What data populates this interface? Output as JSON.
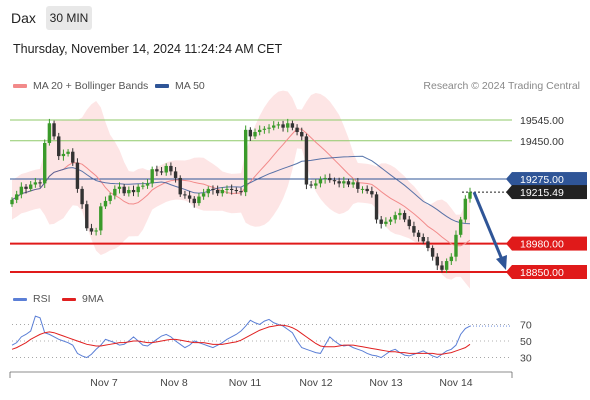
{
  "header": {
    "symbol": "Dax",
    "interval": "30 MIN",
    "timestamp": "Thursday, November 14, 2024 11:24:24 AM CET"
  },
  "legend": {
    "items": [
      {
        "label": "MA 20 + Bollinger Bands",
        "color": "#f28a8a"
      },
      {
        "label": "MA 50",
        "color": "#2f5597"
      }
    ],
    "credit": "Research © 2024 Trading Central"
  },
  "rsi_legend": {
    "items": [
      {
        "label": "RSI",
        "color": "#5b7fd6"
      },
      {
        "label": "9MA",
        "color": "#e02020"
      }
    ]
  },
  "chart_data": [
    {
      "type": "candlestick",
      "title": "",
      "x_labels": [
        "Nov 7",
        "Nov 8",
        "Nov 11",
        "Nov 12",
        "Nov 13",
        "Nov 14"
      ],
      "ylim": [
        18820,
        19640
      ],
      "levels": [
        {
          "label": "19545.00",
          "value": 19545,
          "style": "resistance",
          "color": "#8fca6a"
        },
        {
          "label": "19450.00",
          "value": 19450,
          "style": "resistance",
          "color": "#8fca6a"
        },
        {
          "label": "19275.00",
          "value": 19275,
          "style": "pivot",
          "color": "#2f5597"
        },
        {
          "label": "19215.49",
          "value": 19215.49,
          "style": "last",
          "color": "#222222"
        },
        {
          "label": "18980.00",
          "value": 18980,
          "style": "support",
          "color": "#e01a1a"
        },
        {
          "label": "18850.00",
          "value": 18850,
          "style": "support",
          "color": "#e01a1a"
        }
      ],
      "closes": [
        19180,
        19205,
        19240,
        19230,
        19250,
        19260,
        19255,
        19440,
        19530,
        19470,
        19380,
        19390,
        19400,
        19350,
        19230,
        19160,
        19050,
        19035,
        19040,
        19150,
        19175,
        19200,
        19230,
        19240,
        19210,
        19225,
        19215,
        19240,
        19245,
        19255,
        19320,
        19310,
        19305,
        19335,
        19310,
        19280,
        19205,
        19200,
        19185,
        19165,
        19195,
        19210,
        19230,
        19225,
        19210,
        19225,
        19230,
        19225,
        19220,
        19215,
        19500,
        19470,
        19490,
        19500,
        19505,
        19510,
        19520,
        19525,
        19510,
        19530,
        19510,
        19490,
        19470,
        19250,
        19245,
        19255,
        19275,
        19280,
        19270,
        19265,
        19255,
        19265,
        19250,
        19260,
        19230,
        19230,
        19220,
        19205,
        19090,
        19070,
        19080,
        19090,
        19110,
        19120,
        19090,
        19060,
        19030,
        19010,
        18990,
        18960,
        18920,
        18880,
        18860,
        18900,
        18920,
        19020,
        19090,
        19185,
        19215
      ],
      "projection": {
        "from": 19215,
        "to": 18850
      }
    },
    {
      "type": "line",
      "title": "RSI",
      "series": [
        {
          "name": "RSI",
          "values": [
            45,
            48,
            55,
            58,
            62,
            80,
            78,
            60,
            58,
            55,
            52,
            50,
            48,
            45,
            35,
            32,
            30,
            34,
            40,
            45,
            52,
            50,
            48,
            45,
            46,
            50,
            55,
            50,
            45,
            44,
            48,
            52,
            56,
            58,
            55,
            50,
            46,
            42,
            45,
            50,
            48,
            46,
            44,
            42,
            45,
            48,
            52,
            55,
            58,
            62,
            68,
            75,
            72,
            70,
            74,
            76,
            72,
            70,
            68,
            64,
            60,
            50,
            42,
            40,
            38,
            36,
            35,
            45,
            55,
            50,
            46,
            44,
            45,
            42,
            40,
            38,
            35,
            33,
            32,
            30,
            34,
            38,
            40,
            36,
            33,
            32,
            34,
            36,
            38,
            35,
            32,
            30,
            34,
            38,
            40,
            45,
            58,
            65,
            68
          ]
        },
        {
          "name": "9MA",
          "values": [
            40,
            42,
            45,
            48,
            52,
            55,
            58,
            60,
            61,
            60,
            58,
            56,
            54,
            52,
            50,
            48,
            46,
            45,
            44,
            44,
            45,
            46,
            47,
            48,
            48,
            49,
            50,
            50,
            49,
            48,
            48,
            49,
            50,
            51,
            52,
            52,
            51,
            50,
            49,
            48,
            48,
            48,
            47,
            46,
            46,
            46,
            47,
            48,
            49,
            51,
            54,
            57,
            60,
            63,
            65,
            67,
            68,
            69,
            69,
            68,
            66,
            63,
            59,
            55,
            51,
            47,
            44,
            43,
            43,
            43,
            44,
            45,
            45,
            45,
            44,
            43,
            42,
            41,
            40,
            39,
            38,
            37,
            37,
            36,
            36,
            35,
            35,
            35,
            35,
            35,
            35,
            34,
            34,
            35,
            36,
            38,
            40,
            42,
            46
          ]
        }
      ],
      "levels": [
        {
          "label": "70",
          "value": 70
        },
        {
          "label": "50",
          "value": 50
        },
        {
          "label": "30",
          "value": 30
        }
      ],
      "ylim": [
        15,
        85
      ]
    }
  ]
}
